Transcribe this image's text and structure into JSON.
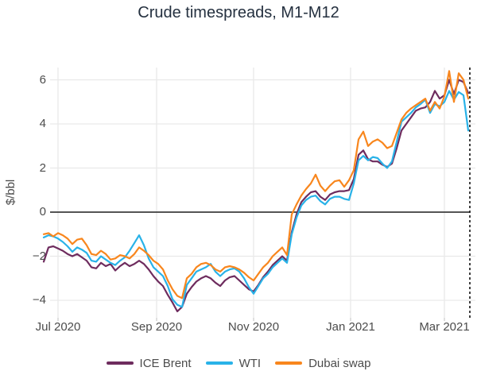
{
  "title": "Crude timespreads, M1-M12",
  "y_axis_label": "$/bbl",
  "colors": {
    "ice_brent": "#6e2c5e",
    "wti": "#29b2e8",
    "dubai_swap": "#f8861d",
    "zero_line": "#3d3d3d",
    "grid_line": "#e9e9e9",
    "dashed_divider": "#111111",
    "tick_text": "#4c4c4c",
    "title_text": "#24303f"
  },
  "chart_data": {
    "type": "line",
    "title": "Crude timespreads, M1-M12",
    "xlabel": "",
    "ylabel": "$/bbl",
    "ylim": [
      -4.8,
      6.6
    ],
    "grid": true,
    "legend_position": "bottom",
    "zero_line": true,
    "dashed_vline_date": "2021-03-17",
    "x_start": "2020-06-22",
    "x_step_days": 3,
    "xticks": [
      {
        "label": "Jul 2020",
        "date": "2020-07-01"
      },
      {
        "label": "Sep 2020",
        "date": "2020-09-01"
      },
      {
        "label": "Nov 2020",
        "date": "2020-11-01"
      },
      {
        "label": "Jan 2021",
        "date": "2021-01-01"
      },
      {
        "label": "Mar 2021",
        "date": "2021-03-01"
      }
    ],
    "yticks": [
      {
        "label": "6",
        "value": 6
      },
      {
        "label": "4",
        "value": 4
      },
      {
        "label": "2",
        "value": 2
      },
      {
        "label": "0",
        "value": 0
      },
      {
        "label": "−2",
        "value": -2
      },
      {
        "label": "−4",
        "value": -4
      }
    ],
    "series": [
      {
        "name": "ICE Brent",
        "color": "#6e2c5e",
        "values": [
          -2.25,
          -1.6,
          -1.55,
          -1.65,
          -1.75,
          -1.9,
          -2.0,
          -1.9,
          -2.05,
          -2.2,
          -2.5,
          -2.55,
          -2.3,
          -2.45,
          -2.35,
          -2.65,
          -2.45,
          -2.3,
          -2.45,
          -2.35,
          -2.2,
          -2.35,
          -2.6,
          -2.9,
          -3.15,
          -3.35,
          -3.75,
          -4.1,
          -4.5,
          -4.3,
          -3.7,
          -3.4,
          -3.15,
          -3.0,
          -2.9,
          -3.0,
          -3.2,
          -3.35,
          -3.1,
          -2.95,
          -2.9,
          -3.1,
          -3.3,
          -3.5,
          -3.6,
          -3.3,
          -2.95,
          -2.7,
          -2.4,
          -2.2,
          -2.0,
          -2.2,
          -0.9,
          -0.1,
          0.45,
          0.7,
          0.9,
          0.95,
          0.7,
          0.55,
          0.8,
          0.9,
          0.95,
          0.95,
          1.0,
          1.5,
          2.6,
          2.8,
          2.4,
          2.3,
          2.3,
          2.15,
          2.05,
          2.2,
          2.9,
          3.7,
          4.0,
          4.3,
          4.6,
          4.7,
          4.75,
          5.0,
          5.5,
          5.15,
          5.3,
          6.0,
          5.35,
          6.0,
          5.9,
          5.4
        ]
      },
      {
        "name": "WTI",
        "color": "#29b2e8",
        "values": [
          -1.15,
          -1.05,
          -1.1,
          -1.2,
          -1.35,
          -1.55,
          -1.8,
          -1.6,
          -1.7,
          -1.85,
          -2.2,
          -2.25,
          -2.0,
          -2.15,
          -2.3,
          -2.4,
          -2.2,
          -2.05,
          -1.75,
          -1.4,
          -1.05,
          -1.5,
          -2.1,
          -2.5,
          -2.7,
          -2.9,
          -3.35,
          -3.95,
          -4.2,
          -4.3,
          -3.3,
          -3.0,
          -2.7,
          -2.6,
          -2.5,
          -2.35,
          -2.7,
          -2.9,
          -2.7,
          -2.6,
          -2.55,
          -2.7,
          -3.0,
          -3.4,
          -3.7,
          -3.35,
          -3.0,
          -2.8,
          -2.5,
          -2.3,
          -2.1,
          -2.3,
          -1.0,
          -0.25,
          0.3,
          0.55,
          0.7,
          0.75,
          0.5,
          0.35,
          0.6,
          0.7,
          0.7,
          0.6,
          0.55,
          1.3,
          2.35,
          2.55,
          2.35,
          2.5,
          2.45,
          2.2,
          2.0,
          2.3,
          3.2,
          4.1,
          4.3,
          4.5,
          4.75,
          4.9,
          5.1,
          4.5,
          4.9,
          4.8,
          5.0,
          5.5,
          5.1,
          5.45,
          5.3,
          3.7
        ]
      },
      {
        "name": "Dubai swap",
        "color": "#f8861d",
        "values": [
          -1.0,
          -0.95,
          -1.1,
          -0.95,
          -1.05,
          -1.2,
          -1.45,
          -1.25,
          -1.2,
          -1.5,
          -1.9,
          -1.95,
          -1.75,
          -1.9,
          -2.15,
          -2.1,
          -1.95,
          -2.0,
          -2.1,
          -1.9,
          -1.6,
          -1.75,
          -1.95,
          -2.2,
          -2.35,
          -2.6,
          -3.1,
          -3.5,
          -3.8,
          -3.9,
          -3.0,
          -2.8,
          -2.5,
          -2.35,
          -2.3,
          -2.4,
          -2.6,
          -2.7,
          -2.5,
          -2.45,
          -2.5,
          -2.6,
          -2.75,
          -2.95,
          -3.1,
          -2.8,
          -2.5,
          -2.3,
          -2.0,
          -1.8,
          -1.6,
          -1.95,
          -0.1,
          0.35,
          0.75,
          1.05,
          1.3,
          1.7,
          1.2,
          0.95,
          1.2,
          1.4,
          1.45,
          1.15,
          1.45,
          1.9,
          3.3,
          3.65,
          3.0,
          3.2,
          3.3,
          3.15,
          2.9,
          3.0,
          3.6,
          4.2,
          4.5,
          4.7,
          4.85,
          5.0,
          5.15,
          4.6,
          5.0,
          4.7,
          5.25,
          6.4,
          5.0,
          6.3,
          6.0,
          5.15
        ]
      }
    ]
  }
}
